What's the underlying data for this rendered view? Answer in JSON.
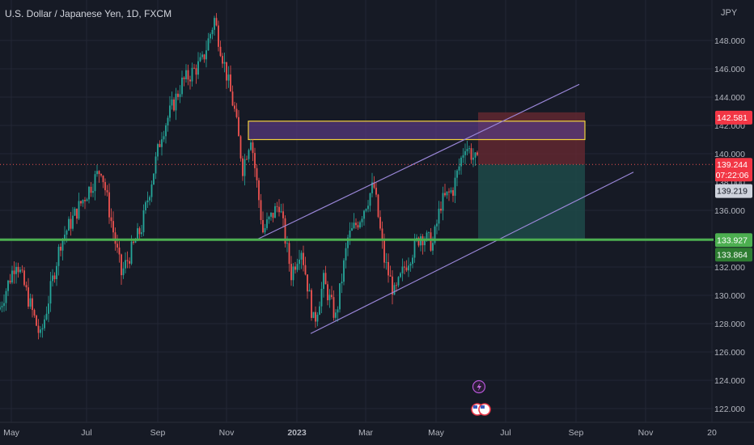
{
  "chart_data": {
    "type": "candlestick",
    "title": "U.S. Dollar / Japanese Yen, 1D, FXCM",
    "y_unit": "JPY",
    "ylim": [
      121.2,
      149.7
    ],
    "y_ticks": [
      "122.000",
      "124.000",
      "126.000",
      "128.000",
      "130.000",
      "132.000",
      "134.000",
      "136.000",
      "138.000",
      "140.000",
      "142.000",
      "144.000",
      "146.000",
      "148.000"
    ],
    "x_ticks": [
      "May",
      "Jul",
      "Sep",
      "Nov",
      "2023",
      "Mar",
      "May",
      "Jul",
      "Sep",
      "Nov",
      "20"
    ],
    "price_labels": {
      "resistance": "142.581",
      "last_price": "139.244",
      "countdown": "07:22:06",
      "prev_close": "139.219",
      "support": "133.927",
      "support_lower": "133.864"
    },
    "price_levels": {
      "resistance": 142.581,
      "last_price": 139.244,
      "prev_close": 139.219,
      "support": 133.927,
      "support_lower": 133.864
    },
    "channel": {
      "lower": [
        [
          384,
          127.3
        ],
        [
          783,
          138.7
        ]
      ],
      "upper": [
        [
          316,
          133.9
        ],
        [
          716,
          144.9
        ]
      ]
    },
    "supply_zone": {
      "x_start": 307,
      "x_end": 723,
      "top": 142.3,
      "bottom": 141.0
    },
    "position": {
      "x_start": 591,
      "x_end": 723,
      "stop": 142.581,
      "entry": 139.244,
      "target": 133.927
    },
    "key_points": [
      [
        -1,
        129.0
      ],
      [
        20,
        132.5
      ],
      [
        50,
        127.0
      ],
      [
        75,
        133.8
      ],
      [
        100,
        136.5
      ],
      [
        125,
        139.0
      ],
      [
        150,
        131.5
      ],
      [
        175,
        134.8
      ],
      [
        200,
        141.5
      ],
      [
        225,
        145.0
      ],
      [
        250,
        146.5
      ],
      [
        265,
        149.5
      ],
      [
        290,
        143.0
      ],
      [
        300,
        139.0
      ],
      [
        310,
        141.3
      ],
      [
        325,
        134.5
      ],
      [
        345,
        136.5
      ],
      [
        360,
        131.5
      ],
      [
        372,
        133.5
      ],
      [
        388,
        128.0
      ],
      [
        400,
        131.0
      ],
      [
        415,
        128.4
      ],
      [
        430,
        134.0
      ],
      [
        445,
        135.5
      ],
      [
        462,
        137.8
      ],
      [
        475,
        132.5
      ],
      [
        488,
        130.0
      ],
      [
        500,
        132.0
      ],
      [
        520,
        134.3
      ],
      [
        535,
        133.6
      ],
      [
        545,
        136.5
      ],
      [
        560,
        137.5
      ],
      [
        575,
        140.7
      ],
      [
        591,
        139.2
      ]
    ],
    "colors": {
      "up": "#26a69a",
      "down": "#ef5350",
      "support": "#4caf50",
      "channel": "#9b87d9",
      "zone_border": "#f2d23c",
      "zone_fill": "#5a3b82",
      "stop_fill": "#6b2a32",
      "target_fill": "#1d4a49"
    }
  }
}
